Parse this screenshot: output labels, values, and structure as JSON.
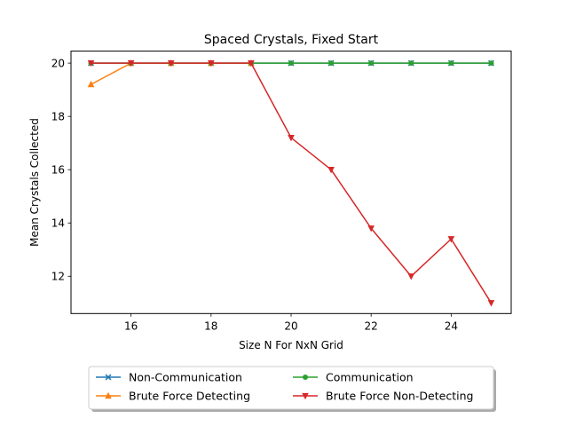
{
  "chart_data": {
    "type": "line",
    "title": "Spaced Crystals, Fixed Start",
    "xlabel": "Size N For NxN Grid",
    "ylabel": "Mean Crystals Collected",
    "xlim": [
      14.5,
      25.5
    ],
    "ylim": [
      10.6,
      20.45
    ],
    "xticks": [
      16,
      18,
      20,
      22,
      24
    ],
    "yticks": [
      12,
      14,
      16,
      18,
      20
    ],
    "grid": false,
    "legend_position": "bottom-center, below axes, 2 columns",
    "x": [
      15,
      16,
      17,
      18,
      19,
      20,
      21,
      22,
      23,
      24,
      25
    ],
    "series": [
      {
        "name": "Non-Communication",
        "color": "#1f77b4",
        "marker": "x",
        "values": [
          20,
          20,
          20,
          20,
          20,
          20,
          20,
          20,
          20,
          20,
          20
        ]
      },
      {
        "name": "Brute Force Detecting",
        "color": "#ff7f0e",
        "marker": "triangle-up",
        "values": [
          19.2,
          20,
          20,
          20,
          20,
          null,
          null,
          null,
          null,
          null,
          null
        ]
      },
      {
        "name": "Communication",
        "color": "#2ca02c",
        "marker": "circle",
        "values": [
          20,
          20,
          20,
          20,
          20,
          20,
          20,
          20,
          20,
          20,
          20
        ]
      },
      {
        "name": "Brute Force Non-Detecting",
        "color": "#d62728",
        "marker": "triangle-down",
        "values": [
          20,
          20,
          20,
          20,
          20,
          17.2,
          16,
          13.8,
          12,
          13.4,
          11
        ]
      }
    ]
  }
}
